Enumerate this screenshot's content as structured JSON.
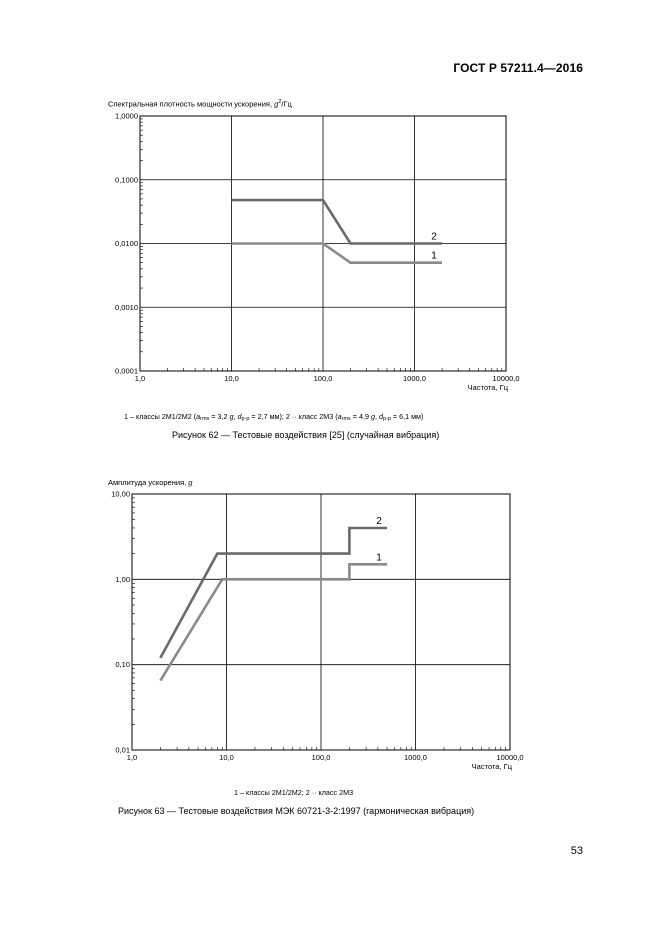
{
  "page": {
    "header": "ГОСТ Р 57211.4—2016",
    "page_number": "53"
  },
  "figure62": {
    "ylabel_prefix": "Спектральная плотность мощности ускорения, ",
    "ylabel_g": "g",
    "ylabel_exp": "2",
    "ylabel_suffix": "/Гц",
    "legend": {
      "p1": "1  –  классы 2М1/2М2 (",
      "a1": "a",
      "a1_sub": "rms",
      "p2": " = 3,2 ",
      "g1": "g",
      "p3": ", ",
      "d1": "d",
      "d1_sub": "p-p",
      "p4": " = 2,7 мм); 2  ··  класс 2М3 (",
      "a2": "a",
      "a2_sub": "rms",
      "p5": " = 4,9 ",
      "g2": "g",
      "p6": ", ",
      "d2": "d",
      "d2_sub": "p-p",
      "p7": " = 6,1 мм)"
    },
    "caption": "Рисунок 62 — Тестовые воздействия [25] (случайная вибрация)"
  },
  "figure63": {
    "ylabel_prefix": "Амплитуда ускорения, ",
    "ylabel_g": "g",
    "legend": "1  –  классы 2М1/2М2; 2  ··  класс 2М3",
    "caption": "Рисунок 63 — Тестовые воздействия МЭК 60721-3-2:1997 (гармоническая вибрация)"
  },
  "chart_data": [
    {
      "type": "line",
      "x_scale": "log",
      "y_scale": "log",
      "xlim": [
        1,
        10000
      ],
      "ylim": [
        0.0001,
        1
      ],
      "x_tick_labels": [
        "1,0",
        "10,0",
        "100,0",
        "1000,0",
        "10000,0"
      ],
      "y_tick_labels": [
        "0,0001",
        "0,0010",
        "0,0100",
        "0,1000",
        "1,0000"
      ],
      "xlabel": "Частота, Гц",
      "ylabel": "Спектральная плотность мощности ускорения, g2/Гц",
      "grid": true,
      "series": [
        {
          "name": "1",
          "x": [
            10,
            100,
            200,
            2000
          ],
          "y": [
            0.01,
            0.01,
            0.005,
            0.005
          ],
          "color": "#8a8a8a"
        },
        {
          "name": "2",
          "x": [
            10,
            100,
            200,
            2000
          ],
          "y": [
            0.048,
            0.048,
            0.01,
            0.01
          ],
          "color": "#6a6a6a"
        }
      ]
    },
    {
      "type": "line",
      "x_scale": "log",
      "y_scale": "log",
      "xlim": [
        1,
        10000
      ],
      "ylim": [
        0.01,
        10
      ],
      "x_tick_labels": [
        "1,0",
        "10,0",
        "100,0",
        "1000,0",
        "10000,0"
      ],
      "y_tick_labels": [
        "0,01",
        "0,10",
        "1,00",
        "10,00"
      ],
      "xlabel": "Частота, Гц",
      "ylabel": "Амплитуда ускорения, g",
      "grid": true,
      "series": [
        {
          "name": "1",
          "x": [
            2,
            9,
            200,
            200,
            500
          ],
          "y": [
            0.065,
            1.0,
            1.0,
            1.5,
            1.5
          ],
          "color": "#8a8a8a"
        },
        {
          "name": "2",
          "x": [
            2,
            8,
            200,
            200,
            500
          ],
          "y": [
            0.12,
            2.0,
            2.0,
            4.0,
            4.0
          ],
          "color": "#6a6a6a"
        }
      ]
    }
  ]
}
